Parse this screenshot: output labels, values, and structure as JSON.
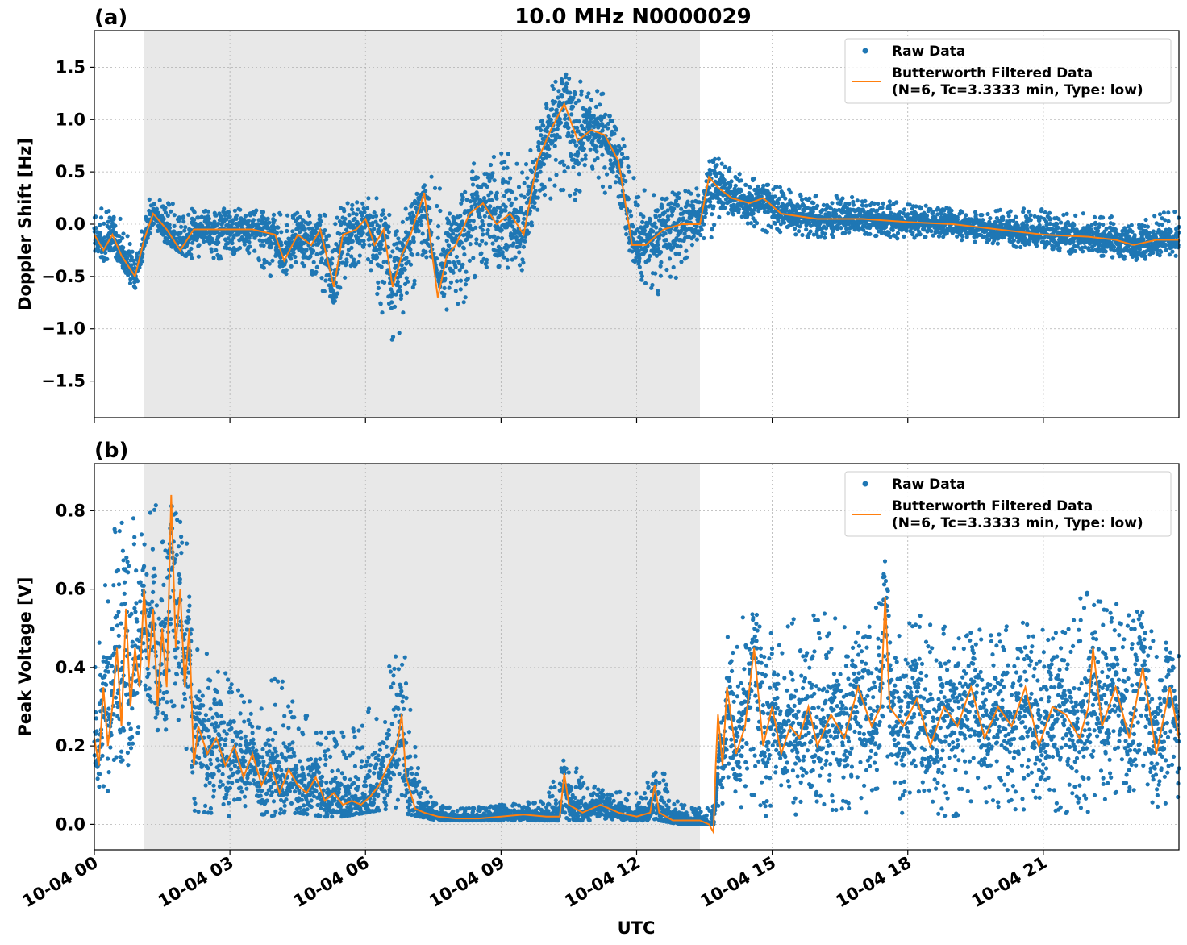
{
  "figure": {
    "title": "10.0 MHz N0000029",
    "xlabel": "UTC",
    "colors": {
      "raw": "#1f77b4",
      "filtered": "#ff7f0e",
      "shade": "#e8e8e8",
      "grid": "#b0b0b0"
    }
  },
  "chart_data": [
    {
      "type": "scatter",
      "panel_label": "(a)",
      "ylabel": "Doppler Shift [Hz]",
      "xlim": [
        0,
        24
      ],
      "ylim": [
        -1.85,
        1.85
      ],
      "yticks": [
        -1.5,
        -1.0,
        -0.5,
        0.0,
        0.5,
        1.0,
        1.5
      ],
      "ytick_labels": [
        "−1.5",
        "−1.0",
        "−0.5",
        "0.0",
        "0.5",
        "1.0",
        "1.5"
      ],
      "xticks": [
        0,
        3,
        6,
        9,
        12,
        15,
        18,
        21
      ],
      "xtick_labels": [
        "10-04 00",
        "10-04 03",
        "10-04 06",
        "10-04 09",
        "10-04 12",
        "10-04 15",
        "10-04 18",
        "10-04 21"
      ],
      "x_unit": "hours UTC on 10-04",
      "shaded_interval": [
        1.1,
        13.4
      ],
      "grid": true,
      "legend": {
        "placement": "upper right",
        "entries": [
          "Raw Data",
          "Butterworth Filtered Data",
          "(N=6, Tc=3.3333 min, Type: low)"
        ]
      },
      "series": [
        {
          "name": "Raw Data",
          "kind": "scatter-band",
          "x": [
            0.0,
            0.5,
            0.9,
            1.2,
            1.5,
            2.0,
            2.5,
            3.0,
            3.5,
            4.0,
            4.5,
            5.0,
            5.3,
            5.6,
            6.0,
            6.3,
            6.6,
            6.9,
            7.2,
            7.5,
            7.8,
            8.1,
            8.5,
            9.0,
            9.5,
            10.0,
            10.5,
            11.0,
            11.5,
            12.0,
            12.5,
            13.0,
            13.4,
            13.7,
            14.0,
            14.5,
            15.0,
            16.0,
            17.0,
            18.0,
            19.0,
            20.0,
            21.0,
            22.0,
            23.0,
            24.0
          ],
          "low": [
            -0.35,
            -0.35,
            -0.65,
            -0.1,
            -0.15,
            -0.3,
            -0.4,
            -0.3,
            -0.3,
            -0.55,
            -0.4,
            -0.65,
            -0.75,
            -0.55,
            -0.3,
            -0.8,
            -1.25,
            -0.9,
            -0.4,
            -0.3,
            -0.9,
            -0.85,
            -0.45,
            -0.4,
            -0.5,
            0.2,
            0.2,
            0.3,
            0.3,
            -0.5,
            -0.7,
            -0.45,
            -0.3,
            -0.1,
            0.05,
            0.0,
            -0.1,
            -0.15,
            -0.1,
            -0.15,
            -0.15,
            -0.2,
            -0.25,
            -0.3,
            -0.35,
            -0.3
          ],
          "high": [
            0.15,
            0.15,
            -0.3,
            0.25,
            0.25,
            0.15,
            0.15,
            0.15,
            0.15,
            0.15,
            0.15,
            0.1,
            0.2,
            0.2,
            0.3,
            0.25,
            0.1,
            0.25,
            0.3,
            0.5,
            0.2,
            0.25,
            0.7,
            0.9,
            0.5,
            1.3,
            1.45,
            1.35,
            1.15,
            0.35,
            0.3,
            0.4,
            0.45,
            0.75,
            0.55,
            0.45,
            0.4,
            0.3,
            0.25,
            0.2,
            0.15,
            0.15,
            0.15,
            0.1,
            0.05,
            0.15
          ]
        },
        {
          "name": "Butterworth Filtered Data",
          "kind": "line",
          "x": [
            0.0,
            0.2,
            0.4,
            0.6,
            0.9,
            1.1,
            1.3,
            1.6,
            1.9,
            2.2,
            2.5,
            3.0,
            3.5,
            4.0,
            4.2,
            4.5,
            4.8,
            5.0,
            5.3,
            5.5,
            5.8,
            6.0,
            6.2,
            6.4,
            6.6,
            6.8,
            7.0,
            7.3,
            7.6,
            7.8,
            8.0,
            8.3,
            8.6,
            8.9,
            9.2,
            9.5,
            9.8,
            10.1,
            10.4,
            10.7,
            11.0,
            11.3,
            11.6,
            11.9,
            12.2,
            12.6,
            13.0,
            13.4,
            13.6,
            13.8,
            14.1,
            14.5,
            14.8,
            15.2,
            16.0,
            17.0,
            18.0,
            19.0,
            20.0,
            21.0,
            22.0,
            22.6,
            23.0,
            23.5,
            24.0
          ],
          "y": [
            -0.1,
            -0.25,
            -0.1,
            -0.3,
            -0.5,
            -0.15,
            0.1,
            -0.05,
            -0.25,
            -0.05,
            -0.05,
            -0.05,
            -0.05,
            -0.1,
            -0.35,
            -0.1,
            -0.2,
            -0.05,
            -0.6,
            -0.1,
            -0.05,
            0.05,
            -0.2,
            -0.05,
            -0.6,
            -0.3,
            -0.1,
            0.3,
            -0.7,
            -0.3,
            -0.2,
            0.1,
            0.2,
            0.0,
            0.1,
            -0.1,
            0.6,
            0.9,
            1.15,
            0.8,
            0.9,
            0.85,
            0.6,
            -0.2,
            -0.2,
            -0.05,
            0.0,
            0.0,
            0.45,
            0.35,
            0.25,
            0.2,
            0.25,
            0.1,
            0.05,
            0.05,
            0.02,
            0.0,
            -0.05,
            -0.1,
            -0.12,
            -0.15,
            -0.2,
            -0.15,
            -0.15
          ]
        }
      ]
    },
    {
      "type": "scatter",
      "panel_label": "(b)",
      "ylabel": "Peak Voltage [V]",
      "xlim": [
        0,
        24
      ],
      "ylim": [
        -0.065,
        0.92
      ],
      "yticks": [
        0.0,
        0.2,
        0.4,
        0.6,
        0.8
      ],
      "ytick_labels": [
        "0.0",
        "0.2",
        "0.4",
        "0.6",
        "0.8"
      ],
      "xticks": [
        0,
        3,
        6,
        9,
        12,
        15,
        18,
        21
      ],
      "xtick_labels": [
        "10-04 00",
        "10-04 03",
        "10-04 06",
        "10-04 09",
        "10-04 12",
        "10-04 15",
        "10-04 18",
        "10-04 21"
      ],
      "x_unit": "hours UTC on 10-04",
      "shaded_interval": [
        1.1,
        13.4
      ],
      "grid": true,
      "legend": {
        "placement": "upper right",
        "entries": [
          "Raw Data",
          "Butterworth Filtered Data",
          "(N=6, Tc=3.3333 min, Type: low)"
        ]
      },
      "series": [
        {
          "name": "Raw Data",
          "kind": "scatter-band",
          "x": [
            0.0,
            0.5,
            1.0,
            1.5,
            2.0,
            2.2,
            2.5,
            3.0,
            3.5,
            4.0,
            4.5,
            5.0,
            5.5,
            6.0,
            6.5,
            6.8,
            7.2,
            7.6,
            8.0,
            9.0,
            10.0,
            10.4,
            11.0,
            12.0,
            12.5,
            13.0,
            13.5,
            13.75,
            14.0,
            14.5,
            15.0,
            16.0,
            17.0,
            17.5,
            18.0,
            19.0,
            20.0,
            21.0,
            22.0,
            23.0,
            24.0
          ],
          "low": [
            0.06,
            0.1,
            0.2,
            0.25,
            0.2,
            0.03,
            0.02,
            0.02,
            0.03,
            0.02,
            0.03,
            0.02,
            0.02,
            0.03,
            0.04,
            0.03,
            0.02,
            0.01,
            0.01,
            0.01,
            0.01,
            0.01,
            0.01,
            0.01,
            0.01,
            0.0,
            0.0,
            0.0,
            0.03,
            0.02,
            0.02,
            0.03,
            0.03,
            0.02,
            0.03,
            0.02,
            0.03,
            0.02,
            0.03,
            0.04,
            0.05
          ],
          "high": [
            0.45,
            0.8,
            0.8,
            0.82,
            0.8,
            0.45,
            0.45,
            0.4,
            0.35,
            0.4,
            0.3,
            0.25,
            0.25,
            0.3,
            0.4,
            0.5,
            0.12,
            0.05,
            0.04,
            0.05,
            0.07,
            0.18,
            0.1,
            0.08,
            0.15,
            0.06,
            0.04,
            0.05,
            0.5,
            0.55,
            0.5,
            0.55,
            0.5,
            0.7,
            0.55,
            0.5,
            0.55,
            0.5,
            0.6,
            0.55,
            0.5
          ]
        },
        {
          "name": "Butterworth Filtered Data",
          "kind": "line",
          "x": [
            0.0,
            0.1,
            0.2,
            0.3,
            0.4,
            0.5,
            0.6,
            0.7,
            0.8,
            0.9,
            1.0,
            1.1,
            1.2,
            1.3,
            1.4,
            1.5,
            1.6,
            1.7,
            1.8,
            1.9,
            2.0,
            2.1,
            2.2,
            2.3,
            2.5,
            2.7,
            2.9,
            3.1,
            3.3,
            3.5,
            3.7,
            3.9,
            4.1,
            4.3,
            4.5,
            4.7,
            4.9,
            5.1,
            5.3,
            5.5,
            5.7,
            5.9,
            6.1,
            6.3,
            6.5,
            6.7,
            6.8,
            6.9,
            7.1,
            7.3,
            7.6,
            8.0,
            8.5,
            9.0,
            9.5,
            10.0,
            10.3,
            10.4,
            10.5,
            10.8,
            11.2,
            11.6,
            12.0,
            12.3,
            12.4,
            12.5,
            12.8,
            13.1,
            13.4,
            13.6,
            13.7,
            13.75,
            13.8,
            13.9,
            14.0,
            14.2,
            14.4,
            14.6,
            14.8,
            15.0,
            15.2,
            15.4,
            15.6,
            15.8,
            16.0,
            16.3,
            16.6,
            16.9,
            17.2,
            17.4,
            17.5,
            17.6,
            17.9,
            18.2,
            18.5,
            18.8,
            19.1,
            19.4,
            19.7,
            20.0,
            20.3,
            20.6,
            20.9,
            21.2,
            21.5,
            21.8,
            22.0,
            22.1,
            22.3,
            22.6,
            22.9,
            23.2,
            23.5,
            23.8,
            24.0
          ],
          "y": [
            0.22,
            0.15,
            0.35,
            0.2,
            0.3,
            0.45,
            0.25,
            0.55,
            0.3,
            0.45,
            0.35,
            0.6,
            0.4,
            0.55,
            0.3,
            0.5,
            0.35,
            0.84,
            0.45,
            0.6,
            0.35,
            0.5,
            0.15,
            0.25,
            0.18,
            0.22,
            0.15,
            0.2,
            0.12,
            0.18,
            0.1,
            0.15,
            0.08,
            0.14,
            0.1,
            0.08,
            0.12,
            0.06,
            0.08,
            0.05,
            0.06,
            0.05,
            0.07,
            0.1,
            0.15,
            0.2,
            0.28,
            0.12,
            0.04,
            0.03,
            0.02,
            0.015,
            0.015,
            0.02,
            0.025,
            0.02,
            0.02,
            0.13,
            0.05,
            0.03,
            0.05,
            0.03,
            0.02,
            0.03,
            0.1,
            0.03,
            0.01,
            0.01,
            0.01,
            0.0,
            -0.02,
            0.15,
            0.28,
            0.15,
            0.35,
            0.18,
            0.25,
            0.45,
            0.2,
            0.3,
            0.18,
            0.25,
            0.22,
            0.3,
            0.2,
            0.28,
            0.22,
            0.35,
            0.25,
            0.3,
            0.58,
            0.3,
            0.25,
            0.32,
            0.2,
            0.3,
            0.25,
            0.35,
            0.22,
            0.3,
            0.25,
            0.35,
            0.2,
            0.3,
            0.28,
            0.22,
            0.3,
            0.45,
            0.25,
            0.35,
            0.22,
            0.4,
            0.18,
            0.35,
            0.22
          ]
        }
      ]
    }
  ]
}
